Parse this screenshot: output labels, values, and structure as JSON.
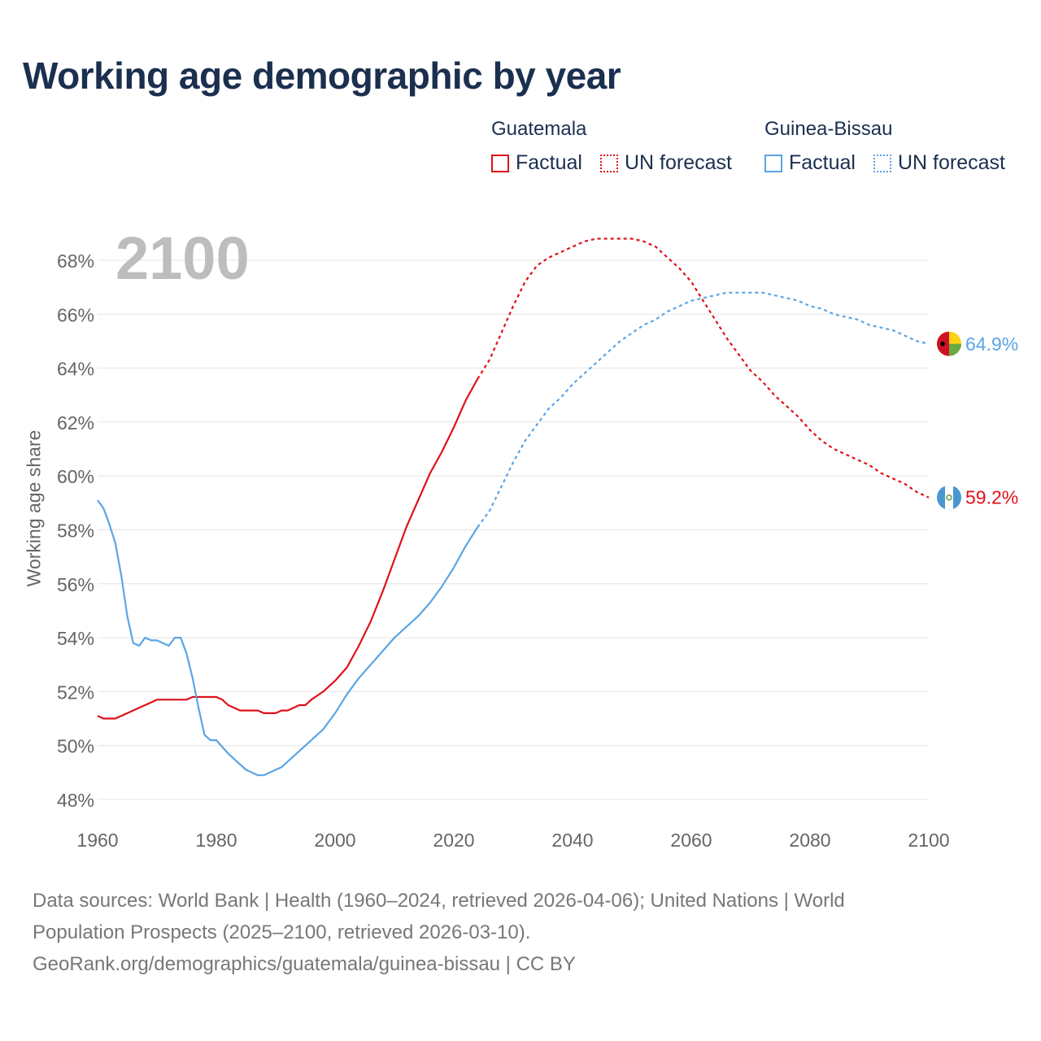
{
  "title": "Working age demographic by year",
  "legend": {
    "groups": [
      {
        "name": "Guatemala",
        "color": "#e0101a",
        "factual_label": "Factual",
        "forecast_label": "UN forecast"
      },
      {
        "name": "Guinea-Bissau",
        "color": "#5ba4e5",
        "factual_label": "Factual",
        "forecast_label": "UN forecast"
      }
    ]
  },
  "year_label": "2100",
  "footer": {
    "line1": "Data sources: World Bank | Health (1960–2024, retrieved 2026-04-06); United Nations | World",
    "line2": "Population Prospects (2025–2100, retrieved 2026-03-10).",
    "line3": "GeoRank.org/demographics/guatemala/guinea-bissau | CC BY"
  },
  "chart_data": {
    "type": "line",
    "title": "Working age demographic by year",
    "xlabel": "",
    "ylabel": "Working age share",
    "xlim": [
      1960,
      2100
    ],
    "ylim": [
      48,
      69
    ],
    "x_ticks": [
      1960,
      1980,
      2000,
      2020,
      2040,
      2060,
      2080,
      2100
    ],
    "y_ticks": [
      48,
      50,
      52,
      54,
      56,
      58,
      60,
      62,
      64,
      66,
      68
    ],
    "y_tick_labels": [
      "48%",
      "50%",
      "52%",
      "54%",
      "56%",
      "58%",
      "60%",
      "62%",
      "64%",
      "66%",
      "68%"
    ],
    "grid": true,
    "forecast_start": 2024,
    "series": [
      {
        "name": "Guatemala",
        "color": "#e0101a",
        "end_label": "59.2%",
        "x": [
          1960,
          1961,
          1962,
          1963,
          1964,
          1965,
          1966,
          1967,
          1968,
          1969,
          1970,
          1972,
          1974,
          1975,
          1976,
          1978,
          1980,
          1981,
          1982,
          1984,
          1985,
          1986,
          1987,
          1988,
          1990,
          1991,
          1992,
          1994,
          1995,
          1996,
          1998,
          2000,
          2002,
          2004,
          2006,
          2008,
          2010,
          2012,
          2014,
          2016,
          2018,
          2020,
          2022,
          2024,
          2026,
          2028,
          2030,
          2032,
          2034,
          2036,
          2038,
          2040,
          2042,
          2044,
          2046,
          2048,
          2050,
          2052,
          2054,
          2056,
          2058,
          2060,
          2062,
          2064,
          2066,
          2068,
          2070,
          2072,
          2074,
          2076,
          2078,
          2080,
          2082,
          2084,
          2086,
          2088,
          2090,
          2092,
          2094,
          2096,
          2098,
          2100
        ],
        "values": [
          51.1,
          51.0,
          51.0,
          51.0,
          51.1,
          51.2,
          51.3,
          51.4,
          51.5,
          51.6,
          51.7,
          51.7,
          51.7,
          51.7,
          51.8,
          51.8,
          51.8,
          51.7,
          51.5,
          51.3,
          51.3,
          51.3,
          51.3,
          51.2,
          51.2,
          51.3,
          51.3,
          51.5,
          51.5,
          51.7,
          52.0,
          52.4,
          52.9,
          53.7,
          54.6,
          55.7,
          56.9,
          58.1,
          59.1,
          60.1,
          60.9,
          61.8,
          62.8,
          63.6,
          64.3,
          65.3,
          66.3,
          67.2,
          67.8,
          68.1,
          68.3,
          68.5,
          68.7,
          68.8,
          68.8,
          68.8,
          68.8,
          68.7,
          68.5,
          68.1,
          67.7,
          67.2,
          66.5,
          65.8,
          65.1,
          64.5,
          63.9,
          63.5,
          63.0,
          62.6,
          62.2,
          61.7,
          61.3,
          61.0,
          60.8,
          60.6,
          60.4,
          60.1,
          59.9,
          59.7,
          59.4,
          59.2
        ]
      },
      {
        "name": "Guinea-Bissau",
        "color": "#5ba4e5",
        "end_label": "64.9%",
        "x": [
          1960,
          1961,
          1962,
          1963,
          1964,
          1965,
          1966,
          1967,
          1968,
          1969,
          1970,
          1971,
          1972,
          1973,
          1974,
          1975,
          1976,
          1977,
          1978,
          1979,
          1980,
          1982,
          1983,
          1984,
          1985,
          1986,
          1987,
          1988,
          1989,
          1990,
          1991,
          1992,
          1994,
          1995,
          1996,
          1998,
          2000,
          2002,
          2004,
          2006,
          2008,
          2010,
          2012,
          2014,
          2016,
          2018,
          2020,
          2022,
          2024,
          2026,
          2028,
          2030,
          2032,
          2034,
          2036,
          2038,
          2040,
          2042,
          2044,
          2046,
          2048,
          2050,
          2052,
          2054,
          2056,
          2058,
          2060,
          2062,
          2064,
          2066,
          2068,
          2070,
          2072,
          2074,
          2076,
          2078,
          2080,
          2082,
          2084,
          2086,
          2088,
          2090,
          2092,
          2094,
          2096,
          2098,
          2100
        ],
        "values": [
          59.1,
          58.8,
          58.2,
          57.5,
          56.3,
          54.8,
          53.8,
          53.7,
          54.0,
          53.9,
          53.9,
          53.8,
          53.7,
          54.0,
          54.0,
          53.4,
          52.5,
          51.4,
          50.4,
          50.2,
          50.2,
          49.7,
          49.5,
          49.3,
          49.1,
          49.0,
          48.9,
          48.9,
          49.0,
          49.1,
          49.2,
          49.4,
          49.8,
          50.0,
          50.2,
          50.6,
          51.2,
          51.9,
          52.5,
          53.0,
          53.5,
          54.0,
          54.4,
          54.8,
          55.3,
          55.9,
          56.6,
          57.4,
          58.1,
          58.7,
          59.6,
          60.5,
          61.3,
          61.9,
          62.5,
          62.9,
          63.4,
          63.8,
          64.2,
          64.6,
          65.0,
          65.3,
          65.6,
          65.8,
          66.1,
          66.3,
          66.5,
          66.6,
          66.7,
          66.8,
          66.8,
          66.8,
          66.8,
          66.7,
          66.6,
          66.5,
          66.3,
          66.2,
          66.0,
          65.9,
          65.8,
          65.6,
          65.5,
          65.4,
          65.2,
          65.0,
          64.9
        ]
      }
    ]
  }
}
